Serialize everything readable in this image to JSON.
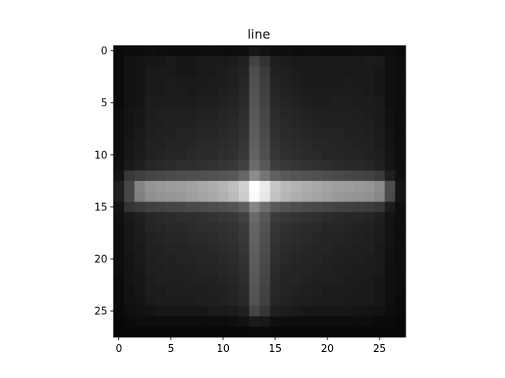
{
  "chart_data": {
    "type": "heatmap",
    "title": "line",
    "colormap": "gray",
    "rows": 28,
    "cols": 28,
    "xlim": [
      -0.5,
      27.5
    ],
    "ylim": [
      27.5,
      -0.5
    ],
    "xticks": [
      0,
      5,
      10,
      15,
      20,
      25
    ],
    "yticks": [
      0,
      5,
      10,
      15,
      20,
      25
    ],
    "xtick_labels": [
      "0",
      "5",
      "10",
      "15",
      "20",
      "25"
    ],
    "ytick_labels": [
      "0",
      "5",
      "10",
      "15",
      "20",
      "25"
    ],
    "grid": false,
    "pattern": {
      "background_value": 0.07,
      "horizontal_band": {
        "row_center": 13.5,
        "rows": [
          12,
          15
        ],
        "cols": [
          1,
          26
        ],
        "peak_value": 0.65
      },
      "vertical_band": {
        "col_center": 13,
        "cols": [
          12,
          14
        ],
        "rows": [
          1,
          25
        ],
        "peak_value": 0.3
      },
      "center_peak": {
        "row": 13,
        "col": 13,
        "value": 1.0
      }
    },
    "values": [
      [
        0.04,
        0.05,
        0.05,
        0.06,
        0.05,
        0.05,
        0.05,
        0.05,
        0.05,
        0.06,
        0.05,
        0.05,
        0.06,
        0.09,
        0.07,
        0.06,
        0.06,
        0.05,
        0.05,
        0.05,
        0.05,
        0.05,
        0.05,
        0.06,
        0.06,
        0.05,
        0.05,
        0.04
      ],
      [
        0.04,
        0.07,
        0.08,
        0.09,
        0.09,
        0.1,
        0.09,
        0.09,
        0.1,
        0.1,
        0.1,
        0.11,
        0.13,
        0.26,
        0.2,
        0.12,
        0.11,
        0.1,
        0.1,
        0.1,
        0.1,
        0.1,
        0.1,
        0.1,
        0.11,
        0.1,
        0.06,
        0.05
      ],
      [
        0.04,
        0.07,
        0.08,
        0.1,
        0.1,
        0.1,
        0.09,
        0.09,
        0.1,
        0.1,
        0.11,
        0.12,
        0.14,
        0.3,
        0.23,
        0.13,
        0.12,
        0.11,
        0.1,
        0.1,
        0.1,
        0.1,
        0.1,
        0.1,
        0.1,
        0.09,
        0.06,
        0.05
      ],
      [
        0.04,
        0.07,
        0.08,
        0.1,
        0.1,
        0.11,
        0.1,
        0.1,
        0.1,
        0.11,
        0.11,
        0.12,
        0.15,
        0.31,
        0.24,
        0.14,
        0.12,
        0.11,
        0.1,
        0.1,
        0.1,
        0.1,
        0.11,
        0.1,
        0.1,
        0.09,
        0.06,
        0.05
      ],
      [
        0.04,
        0.07,
        0.08,
        0.1,
        0.1,
        0.11,
        0.11,
        0.1,
        0.11,
        0.11,
        0.12,
        0.13,
        0.16,
        0.32,
        0.25,
        0.15,
        0.13,
        0.12,
        0.11,
        0.11,
        0.11,
        0.11,
        0.11,
        0.11,
        0.1,
        0.09,
        0.06,
        0.05
      ],
      [
        0.04,
        0.07,
        0.08,
        0.11,
        0.11,
        0.11,
        0.11,
        0.11,
        0.12,
        0.12,
        0.13,
        0.14,
        0.17,
        0.33,
        0.26,
        0.16,
        0.14,
        0.13,
        0.12,
        0.11,
        0.11,
        0.12,
        0.12,
        0.11,
        0.11,
        0.1,
        0.06,
        0.05
      ],
      [
        0.05,
        0.08,
        0.09,
        0.11,
        0.12,
        0.12,
        0.12,
        0.12,
        0.13,
        0.13,
        0.14,
        0.15,
        0.18,
        0.34,
        0.27,
        0.17,
        0.15,
        0.14,
        0.13,
        0.12,
        0.12,
        0.12,
        0.12,
        0.12,
        0.11,
        0.1,
        0.07,
        0.05
      ],
      [
        0.05,
        0.08,
        0.09,
        0.12,
        0.12,
        0.13,
        0.13,
        0.13,
        0.14,
        0.14,
        0.15,
        0.16,
        0.19,
        0.35,
        0.28,
        0.18,
        0.16,
        0.15,
        0.14,
        0.13,
        0.13,
        0.13,
        0.13,
        0.12,
        0.12,
        0.1,
        0.07,
        0.05
      ],
      [
        0.05,
        0.08,
        0.1,
        0.12,
        0.13,
        0.13,
        0.14,
        0.14,
        0.15,
        0.15,
        0.16,
        0.17,
        0.2,
        0.36,
        0.29,
        0.19,
        0.17,
        0.16,
        0.15,
        0.14,
        0.14,
        0.14,
        0.13,
        0.13,
        0.12,
        0.11,
        0.07,
        0.05
      ],
      [
        0.05,
        0.09,
        0.1,
        0.13,
        0.13,
        0.14,
        0.14,
        0.15,
        0.16,
        0.16,
        0.17,
        0.18,
        0.21,
        0.37,
        0.3,
        0.2,
        0.18,
        0.17,
        0.16,
        0.15,
        0.15,
        0.14,
        0.14,
        0.13,
        0.13,
        0.11,
        0.07,
        0.05
      ],
      [
        0.05,
        0.09,
        0.11,
        0.13,
        0.14,
        0.15,
        0.15,
        0.16,
        0.17,
        0.17,
        0.18,
        0.19,
        0.22,
        0.38,
        0.31,
        0.21,
        0.19,
        0.18,
        0.17,
        0.16,
        0.15,
        0.15,
        0.14,
        0.14,
        0.13,
        0.12,
        0.08,
        0.05
      ],
      [
        0.06,
        0.1,
        0.12,
        0.15,
        0.16,
        0.17,
        0.18,
        0.18,
        0.19,
        0.2,
        0.21,
        0.22,
        0.25,
        0.42,
        0.35,
        0.24,
        0.22,
        0.21,
        0.2,
        0.19,
        0.18,
        0.17,
        0.16,
        0.16,
        0.15,
        0.13,
        0.08,
        0.06
      ],
      [
        0.08,
        0.22,
        0.25,
        0.27,
        0.28,
        0.29,
        0.3,
        0.31,
        0.31,
        0.32,
        0.33,
        0.35,
        0.4,
        0.55,
        0.46,
        0.38,
        0.35,
        0.33,
        0.32,
        0.31,
        0.3,
        0.29,
        0.28,
        0.27,
        0.26,
        0.23,
        0.12,
        0.06
      ],
      [
        0.12,
        0.28,
        0.52,
        0.58,
        0.6,
        0.61,
        0.62,
        0.64,
        0.66,
        0.68,
        0.71,
        0.75,
        0.82,
        1.0,
        0.92,
        0.78,
        0.73,
        0.7,
        0.68,
        0.66,
        0.64,
        0.62,
        0.61,
        0.6,
        0.59,
        0.55,
        0.3,
        0.08
      ],
      [
        0.12,
        0.28,
        0.5,
        0.56,
        0.58,
        0.59,
        0.6,
        0.62,
        0.64,
        0.66,
        0.69,
        0.73,
        0.8,
        0.98,
        0.9,
        0.76,
        0.71,
        0.68,
        0.66,
        0.64,
        0.62,
        0.6,
        0.59,
        0.58,
        0.57,
        0.53,
        0.29,
        0.08
      ],
      [
        0.08,
        0.2,
        0.23,
        0.25,
        0.26,
        0.27,
        0.28,
        0.29,
        0.29,
        0.3,
        0.31,
        0.33,
        0.37,
        0.52,
        0.43,
        0.35,
        0.32,
        0.3,
        0.29,
        0.28,
        0.27,
        0.26,
        0.25,
        0.24,
        0.23,
        0.21,
        0.11,
        0.06
      ],
      [
        0.06,
        0.1,
        0.12,
        0.15,
        0.16,
        0.17,
        0.18,
        0.18,
        0.19,
        0.2,
        0.21,
        0.22,
        0.25,
        0.41,
        0.34,
        0.23,
        0.21,
        0.2,
        0.19,
        0.18,
        0.17,
        0.16,
        0.15,
        0.15,
        0.14,
        0.12,
        0.08,
        0.06
      ],
      [
        0.05,
        0.09,
        0.11,
        0.14,
        0.15,
        0.16,
        0.16,
        0.17,
        0.18,
        0.18,
        0.19,
        0.2,
        0.23,
        0.39,
        0.32,
        0.21,
        0.19,
        0.18,
        0.17,
        0.16,
        0.15,
        0.15,
        0.14,
        0.13,
        0.13,
        0.11,
        0.07,
        0.05
      ],
      [
        0.05,
        0.09,
        0.11,
        0.13,
        0.14,
        0.15,
        0.15,
        0.16,
        0.16,
        0.17,
        0.18,
        0.19,
        0.22,
        0.38,
        0.31,
        0.2,
        0.18,
        0.17,
        0.16,
        0.15,
        0.14,
        0.14,
        0.13,
        0.13,
        0.12,
        0.11,
        0.07,
        0.05
      ],
      [
        0.05,
        0.09,
        0.1,
        0.13,
        0.13,
        0.14,
        0.14,
        0.15,
        0.15,
        0.16,
        0.17,
        0.18,
        0.21,
        0.37,
        0.3,
        0.19,
        0.17,
        0.16,
        0.15,
        0.14,
        0.14,
        0.13,
        0.13,
        0.12,
        0.12,
        0.1,
        0.07,
        0.05
      ],
      [
        0.05,
        0.08,
        0.1,
        0.12,
        0.13,
        0.13,
        0.14,
        0.14,
        0.15,
        0.15,
        0.16,
        0.17,
        0.2,
        0.36,
        0.29,
        0.18,
        0.16,
        0.15,
        0.14,
        0.14,
        0.13,
        0.13,
        0.12,
        0.12,
        0.11,
        0.1,
        0.07,
        0.05
      ],
      [
        0.05,
        0.08,
        0.09,
        0.12,
        0.12,
        0.13,
        0.13,
        0.13,
        0.14,
        0.14,
        0.15,
        0.16,
        0.19,
        0.35,
        0.28,
        0.17,
        0.15,
        0.14,
        0.14,
        0.13,
        0.13,
        0.12,
        0.12,
        0.11,
        0.11,
        0.1,
        0.06,
        0.05
      ],
      [
        0.04,
        0.08,
        0.09,
        0.11,
        0.12,
        0.12,
        0.12,
        0.13,
        0.13,
        0.13,
        0.14,
        0.15,
        0.18,
        0.34,
        0.27,
        0.16,
        0.14,
        0.14,
        0.13,
        0.12,
        0.12,
        0.12,
        0.11,
        0.11,
        0.1,
        0.09,
        0.06,
        0.05
      ],
      [
        0.04,
        0.07,
        0.09,
        0.11,
        0.11,
        0.12,
        0.12,
        0.12,
        0.12,
        0.13,
        0.13,
        0.14,
        0.17,
        0.33,
        0.26,
        0.16,
        0.14,
        0.13,
        0.12,
        0.12,
        0.11,
        0.11,
        0.11,
        0.1,
        0.1,
        0.09,
        0.06,
        0.05
      ],
      [
        0.04,
        0.07,
        0.08,
        0.1,
        0.11,
        0.11,
        0.11,
        0.11,
        0.12,
        0.12,
        0.13,
        0.14,
        0.16,
        0.32,
        0.25,
        0.15,
        0.13,
        0.12,
        0.12,
        0.11,
        0.11,
        0.11,
        0.1,
        0.1,
        0.1,
        0.09,
        0.06,
        0.04
      ],
      [
        0.04,
        0.06,
        0.07,
        0.08,
        0.09,
        0.09,
        0.09,
        0.09,
        0.09,
        0.1,
        0.1,
        0.11,
        0.13,
        0.27,
        0.21,
        0.12,
        0.11,
        0.1,
        0.09,
        0.09,
        0.09,
        0.09,
        0.09,
        0.08,
        0.08,
        0.07,
        0.05,
        0.04
      ],
      [
        0.03,
        0.04,
        0.05,
        0.05,
        0.05,
        0.05,
        0.05,
        0.05,
        0.05,
        0.05,
        0.05,
        0.06,
        0.07,
        0.1,
        0.09,
        0.06,
        0.05,
        0.05,
        0.05,
        0.05,
        0.05,
        0.05,
        0.05,
        0.05,
        0.05,
        0.04,
        0.04,
        0.03
      ],
      [
        0.03,
        0.03,
        0.03,
        0.03,
        0.03,
        0.03,
        0.03,
        0.03,
        0.03,
        0.03,
        0.03,
        0.03,
        0.03,
        0.04,
        0.04,
        0.03,
        0.03,
        0.03,
        0.03,
        0.03,
        0.03,
        0.03,
        0.03,
        0.03,
        0.03,
        0.03,
        0.03,
        0.03
      ]
    ]
  }
}
